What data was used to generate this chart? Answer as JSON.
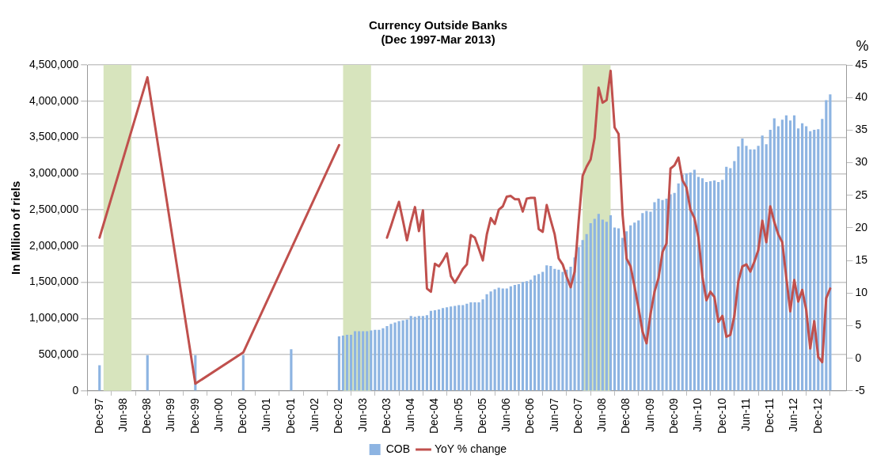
{
  "chart_data": {
    "type": "bar",
    "title": "Currency Outside Banks",
    "subtitle": "(Dec 1997-Mar 2013)",
    "ylabel": "In Million of riels",
    "y2label": "%",
    "xlim": [
      "1997-12",
      "2013-04"
    ],
    "xticks": [
      {
        "value": "1997-12",
        "label": "Dec-97"
      },
      {
        "value": "1998-06",
        "label": "Jun-98"
      },
      {
        "value": "1998-12",
        "label": "Dec-98"
      },
      {
        "value": "1999-06",
        "label": "Jun-99"
      },
      {
        "value": "1999-12",
        "label": "Dec-99"
      },
      {
        "value": "2000-06",
        "label": "Jun-00"
      },
      {
        "value": "2000-12",
        "label": "Dec-00"
      },
      {
        "value": "2001-06",
        "label": "Jun-01"
      },
      {
        "value": "2001-12",
        "label": "Dec-01"
      },
      {
        "value": "2002-06",
        "label": "Jun-02"
      },
      {
        "value": "2002-12",
        "label": "Dec-02"
      },
      {
        "value": "2003-06",
        "label": "Jun-03"
      },
      {
        "value": "2003-12",
        "label": "Dec-03"
      },
      {
        "value": "2004-06",
        "label": "Jun-04"
      },
      {
        "value": "2004-12",
        "label": "Dec-04"
      },
      {
        "value": "2005-06",
        "label": "Jun-05"
      },
      {
        "value": "2005-12",
        "label": "Dec-05"
      },
      {
        "value": "2006-06",
        "label": "Jun-06"
      },
      {
        "value": "2006-12",
        "label": "Dec-06"
      },
      {
        "value": "2007-06",
        "label": "Jun-07"
      },
      {
        "value": "2007-12",
        "label": "Dec-07"
      },
      {
        "value": "2008-06",
        "label": "Jun-08"
      },
      {
        "value": "2008-12",
        "label": "Dec-08"
      },
      {
        "value": "2009-06",
        "label": "Jun-09"
      },
      {
        "value": "2009-12",
        "label": "Dec-09"
      },
      {
        "value": "2010-06",
        "label": "Jun-10"
      },
      {
        "value": "2010-12",
        "label": "Dec-10"
      },
      {
        "value": "2011-06",
        "label": "Jun-11"
      },
      {
        "value": "2011-12",
        "label": "Dec-11"
      },
      {
        "value": "2012-06",
        "label": "Jun-12"
      },
      {
        "value": "2012-12",
        "label": "Dec-12"
      }
    ],
    "ylim": [
      0,
      4500000
    ],
    "yticks": [
      {
        "value": 0,
        "label": "0"
      },
      {
        "value": 500000,
        "label": "500,000"
      },
      {
        "value": 1000000,
        "label": "1,000,000"
      },
      {
        "value": 1500000,
        "label": "1,500,000"
      },
      {
        "value": 2000000,
        "label": "2,000,000"
      },
      {
        "value": 2500000,
        "label": "2,500,000"
      },
      {
        "value": 3000000,
        "label": "3,000,000"
      },
      {
        "value": 3500000,
        "label": "3,500,000"
      },
      {
        "value": 4000000,
        "label": "4,000,000"
      },
      {
        "value": 4500000,
        "label": "4,500,000"
      }
    ],
    "y2lim": [
      -5,
      45
    ],
    "y2ticks": [
      -5,
      0,
      5,
      10,
      15,
      20,
      25,
      30,
      35,
      40,
      45
    ],
    "grid": "y",
    "legend": "bottom",
    "marker": "none",
    "bands": [
      {
        "axis": "x",
        "from": "1998-01",
        "to": "1998-08",
        "color": "#d7e4bd"
      },
      {
        "axis": "x",
        "from": "2003-01",
        "to": "2003-08",
        "color": "#d7e4bd"
      },
      {
        "axis": "x",
        "from": "2008-01",
        "to": "2008-08",
        "color": "#d7e4bd"
      }
    ],
    "series": [
      {
        "name": "COB",
        "color": "#8db4e2",
        "x": [
          "1997-12",
          "1998-12",
          "1999-12",
          "2000-12",
          "2001-12",
          "2002-12",
          "2003-01",
          "2003-02",
          "2003-03",
          "2003-04",
          "2003-05",
          "2003-06",
          "2003-07",
          "2003-08",
          "2003-09",
          "2003-10",
          "2003-11",
          "2003-12",
          "2004-01",
          "2004-02",
          "2004-03",
          "2004-04",
          "2004-05",
          "2004-06",
          "2004-07",
          "2004-08",
          "2004-09",
          "2004-10",
          "2004-11",
          "2004-12",
          "2005-01",
          "2005-02",
          "2005-03",
          "2005-04",
          "2005-05",
          "2005-06",
          "2005-07",
          "2005-08",
          "2005-09",
          "2005-10",
          "2005-11",
          "2005-12",
          "2006-01",
          "2006-02",
          "2006-03",
          "2006-04",
          "2006-05",
          "2006-06",
          "2006-07",
          "2006-08",
          "2006-09",
          "2006-10",
          "2006-11",
          "2006-12",
          "2007-01",
          "2007-02",
          "2007-03",
          "2007-04",
          "2007-05",
          "2007-06",
          "2007-07",
          "2007-08",
          "2007-09",
          "2007-10",
          "2007-11",
          "2007-12",
          "2008-01",
          "2008-02",
          "2008-03",
          "2008-04",
          "2008-05",
          "2008-06",
          "2008-07",
          "2008-08",
          "2008-09",
          "2008-10",
          "2008-11",
          "2008-12",
          "2009-01",
          "2009-02",
          "2009-03",
          "2009-04",
          "2009-05",
          "2009-06",
          "2009-07",
          "2009-08",
          "2009-09",
          "2009-10",
          "2009-11",
          "2009-12",
          "2010-01",
          "2010-02",
          "2010-03",
          "2010-04",
          "2010-05",
          "2010-06",
          "2010-07",
          "2010-08",
          "2010-09",
          "2010-10",
          "2010-11",
          "2010-12",
          "2011-01",
          "2011-02",
          "2011-03",
          "2011-04",
          "2011-05",
          "2011-06",
          "2011-07",
          "2011-08",
          "2011-09",
          "2011-10",
          "2011-11",
          "2011-12",
          "2012-01",
          "2012-02",
          "2012-03",
          "2012-04",
          "2012-05",
          "2012-06",
          "2012-07",
          "2012-08",
          "2012-09",
          "2012-10",
          "2012-11",
          "2012-12",
          "2013-01",
          "2013-02",
          "2013-03"
        ],
        "values": [
          350000,
          490000,
          490000,
          490000,
          570000,
          750000,
          760000,
          770000,
          770000,
          820000,
          820000,
          820000,
          820000,
          830000,
          840000,
          840000,
          860000,
          890000,
          920000,
          940000,
          960000,
          970000,
          980000,
          1030000,
          1020000,
          1030000,
          1030000,
          1040000,
          1100000,
          1110000,
          1120000,
          1140000,
          1150000,
          1160000,
          1170000,
          1180000,
          1180000,
          1200000,
          1220000,
          1220000,
          1220000,
          1260000,
          1330000,
          1370000,
          1400000,
          1420000,
          1410000,
          1410000,
          1440000,
          1460000,
          1470000,
          1500000,
          1510000,
          1530000,
          1590000,
          1610000,
          1640000,
          1730000,
          1720000,
          1680000,
          1670000,
          1640000,
          1670000,
          1710000,
          1840000,
          1980000,
          2080000,
          2160000,
          2310000,
          2370000,
          2440000,
          2360000,
          2330000,
          2420000,
          2250000,
          2240000,
          2110000,
          2200000,
          2280000,
          2320000,
          2350000,
          2450000,
          2480000,
          2470000,
          2600000,
          2650000,
          2630000,
          2650000,
          2710000,
          2730000,
          2860000,
          2980000,
          3000000,
          3010000,
          3050000,
          2950000,
          2930000,
          2880000,
          2890000,
          2900000,
          2880000,
          2910000,
          3090000,
          3070000,
          3170000,
          3370000,
          3480000,
          3380000,
          3330000,
          3330000,
          3380000,
          3520000,
          3400000,
          3600000,
          3760000,
          3650000,
          3740000,
          3800000,
          3730000,
          3800000,
          3620000,
          3690000,
          3650000,
          3580000,
          3600000,
          3610000,
          3750000,
          4010000,
          4090000
        ]
      },
      {
        "name": "YoY % change",
        "type": "line",
        "axis": "y2",
        "color": "#c0504d",
        "x": [
          "1997-12",
          "1998-12",
          "1999-12",
          "2000-12",
          "2002-12",
          "2003-01",
          "2003-12",
          "2004-01",
          "2004-02",
          "2004-03",
          "2004-04",
          "2004-05",
          "2004-06",
          "2004-07",
          "2004-08",
          "2004-09",
          "2004-10",
          "2004-11",
          "2004-12",
          "2005-01",
          "2005-02",
          "2005-03",
          "2005-04",
          "2005-05",
          "2005-06",
          "2005-07",
          "2005-08",
          "2005-09",
          "2005-10",
          "2005-11",
          "2005-12",
          "2006-01",
          "2006-02",
          "2006-03",
          "2006-04",
          "2006-05",
          "2006-06",
          "2006-07",
          "2006-08",
          "2006-09",
          "2006-10",
          "2006-11",
          "2006-12",
          "2007-01",
          "2007-02",
          "2007-03",
          "2007-04",
          "2007-05",
          "2007-06",
          "2007-07",
          "2007-08",
          "2007-09",
          "2007-10",
          "2007-11",
          "2007-12",
          "2008-01",
          "2008-02",
          "2008-03",
          "2008-04",
          "2008-05",
          "2008-06",
          "2008-07",
          "2008-08",
          "2008-09",
          "2008-10",
          "2008-11",
          "2008-12",
          "2009-01",
          "2009-02",
          "2009-03",
          "2009-04",
          "2009-05",
          "2009-06",
          "2009-07",
          "2009-08",
          "2009-09",
          "2009-10",
          "2009-11",
          "2009-12",
          "2010-01",
          "2010-02",
          "2010-03",
          "2010-04",
          "2010-05",
          "2010-06",
          "2010-07",
          "2010-08",
          "2010-09",
          "2010-10",
          "2010-11",
          "2010-12",
          "2011-01",
          "2011-02",
          "2011-03",
          "2011-04",
          "2011-05",
          "2011-06",
          "2011-07",
          "2011-08",
          "2011-09",
          "2011-10",
          "2011-11",
          "2011-12",
          "2012-01",
          "2012-02",
          "2012-03",
          "2012-04",
          "2012-05",
          "2012-06",
          "2012-07",
          "2012-08",
          "2012-09",
          "2012-10",
          "2012-11",
          "2012-12",
          "2013-01",
          "2013-02",
          "2013-03"
        ],
        "values": [
          18.5,
          43.1,
          -3.9,
          0.9,
          32.7,
          null,
          18.5,
          20.3,
          22.2,
          24.0,
          21.1,
          18.1,
          20.9,
          23.2,
          19.5,
          22.7,
          10.7,
          10.2,
          14.5,
          14.1,
          15.0,
          16.1,
          12.6,
          11.6,
          12.6,
          13.7,
          14.4,
          18.9,
          18.5,
          16.8,
          15.0,
          19.0,
          21.5,
          20.6,
          22.8,
          23.3,
          24.8,
          24.9,
          24.4,
          24.4,
          22.5,
          24.5,
          24.6,
          24.6,
          19.8,
          19.4,
          23.5,
          21.2,
          19.0,
          15.3,
          14.4,
          12.5,
          10.9,
          13.3,
          21.0,
          28.0,
          29.4,
          30.5,
          33.8,
          41.5,
          39.2,
          39.6,
          44.1,
          35.4,
          34.4,
          22.0,
          15.3,
          14.1,
          11.0,
          7.7,
          4.1,
          2.3,
          6.8,
          10.2,
          12.3,
          16.3,
          17.6,
          29.1,
          29.6,
          30.8,
          27.3,
          26.2,
          22.8,
          21.5,
          18.5,
          12.5,
          8.9,
          10.2,
          9.4,
          5.6,
          6.5,
          3.3,
          3.6,
          6.5,
          11.8,
          14.1,
          14.4,
          13.3,
          14.8,
          16.6,
          21.1,
          17.8,
          23.3,
          20.9,
          19.0,
          17.8,
          12.4,
          7.2,
          12.0,
          8.7,
          10.5,
          7.4,
          1.5,
          5.7,
          0.2,
          -0.6,
          9.2,
          10.7
        ]
      }
    ]
  }
}
